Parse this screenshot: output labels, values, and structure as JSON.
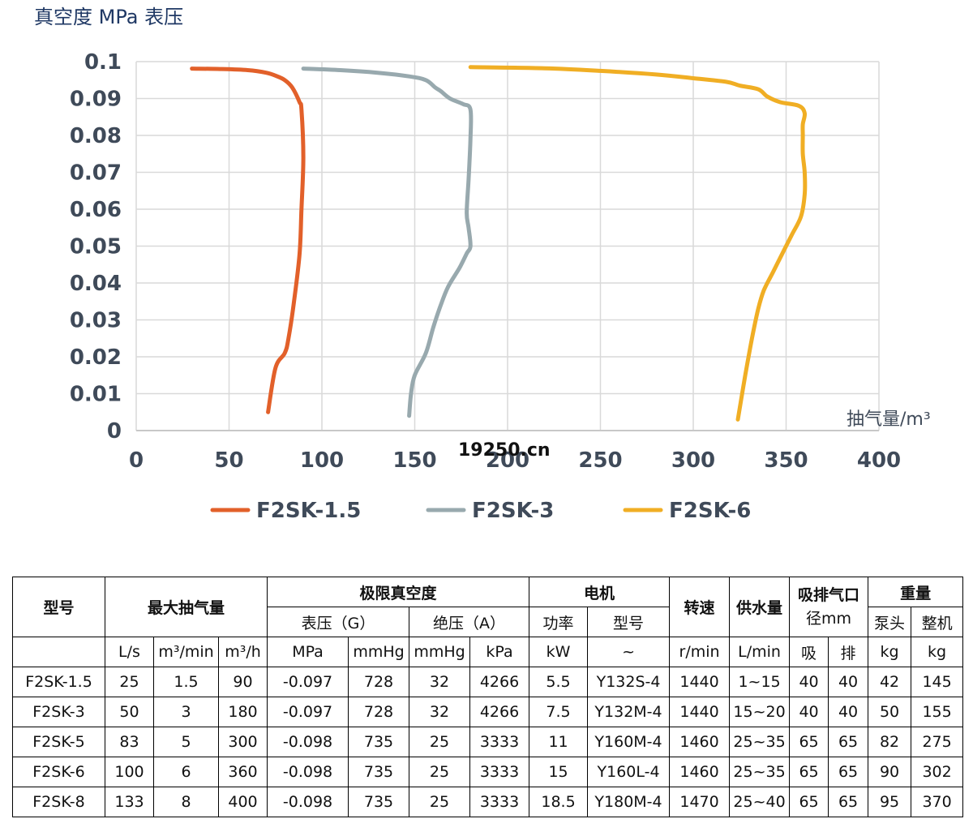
{
  "chart_data": {
    "type": "line",
    "title": "",
    "ylabel": "真空度 MPa 表压",
    "xlabel": "抽气量/m³",
    "xlim": [
      0,
      400
    ],
    "ylim": [
      0,
      0.1
    ],
    "x_ticks": [
      "0",
      "50",
      "100",
      "150",
      "200",
      "250",
      "300",
      "350",
      "400"
    ],
    "y_ticks": [
      "0",
      "0.01",
      "0.02",
      "0.03",
      "0.04",
      "0.05",
      "0.06",
      "0.07",
      "0.08",
      "0.09",
      "0.1"
    ],
    "grid": true,
    "legend_position": "bottom",
    "series": [
      {
        "name": "F2SK-1.5",
        "color": "#e2602a",
        "points": [
          [
            71,
            0.005
          ],
          [
            75,
            0.017
          ],
          [
            80,
            0.021
          ],
          [
            82,
            0.025
          ],
          [
            85,
            0.035
          ],
          [
            88,
            0.048
          ],
          [
            89,
            0.06
          ],
          [
            90,
            0.074
          ],
          [
            89,
            0.087
          ],
          [
            88,
            0.089
          ],
          [
            84,
            0.093
          ],
          [
            80,
            0.095
          ],
          [
            76,
            0.096
          ],
          [
            70,
            0.097
          ],
          [
            60,
            0.0977
          ],
          [
            45,
            0.098
          ],
          [
            30,
            0.0981
          ]
        ]
      },
      {
        "name": "F2SK-3",
        "color": "#98a9ae",
        "points": [
          [
            147,
            0.004
          ],
          [
            148,
            0.01
          ],
          [
            150,
            0.015
          ],
          [
            156,
            0.021
          ],
          [
            160,
            0.028
          ],
          [
            164,
            0.034
          ],
          [
            168,
            0.039
          ],
          [
            174,
            0.044
          ],
          [
            178,
            0.048
          ],
          [
            180,
            0.05
          ],
          [
            179,
            0.055
          ],
          [
            178,
            0.059
          ],
          [
            179,
            0.068
          ],
          [
            180,
            0.079
          ],
          [
            180,
            0.087
          ],
          [
            176,
            0.0885
          ],
          [
            169,
            0.09
          ],
          [
            164,
            0.092
          ],
          [
            161,
            0.093
          ],
          [
            156,
            0.095
          ],
          [
            147,
            0.096
          ],
          [
            130,
            0.097
          ],
          [
            110,
            0.0977
          ],
          [
            90,
            0.0981
          ]
        ]
      },
      {
        "name": "F2SK-6",
        "color": "#f0ae24",
        "points": [
          [
            324,
            0.003
          ],
          [
            328,
            0.015
          ],
          [
            332,
            0.026
          ],
          [
            335,
            0.033
          ],
          [
            338,
            0.038
          ],
          [
            343,
            0.043
          ],
          [
            348,
            0.048
          ],
          [
            353,
            0.053
          ],
          [
            358,
            0.058
          ],
          [
            360,
            0.064
          ],
          [
            360,
            0.07
          ],
          [
            359,
            0.075
          ],
          [
            359,
            0.08
          ],
          [
            359,
            0.083
          ],
          [
            360,
            0.086
          ],
          [
            357,
            0.088
          ],
          [
            347,
            0.089
          ],
          [
            340,
            0.0905
          ],
          [
            335,
            0.0925
          ],
          [
            325,
            0.0935
          ],
          [
            318,
            0.0945
          ],
          [
            300,
            0.0955
          ],
          [
            280,
            0.0965
          ],
          [
            250,
            0.0975
          ],
          [
            220,
            0.0982
          ],
          [
            180,
            0.0985
          ]
        ]
      }
    ]
  },
  "watermark": "19250.cn",
  "table": {
    "h1": {
      "model": "型号",
      "max_flow": "最大抽气量",
      "ultimate_vacuum": "极限真空度",
      "motor": "电机",
      "speed": "转速",
      "water": "供水量",
      "port_l1": "吸排气口",
      "port_l2": "径mm",
      "weight": "重量"
    },
    "h2": {
      "gauge": "表压（G）",
      "absolute": "绝压（A）",
      "power": "功率",
      "motor_model": "型号",
      "pump_head": "泵头",
      "whole": "整机"
    },
    "units": [
      "L/s",
      "m³/min",
      "m³/h",
      "MPa",
      "mmHg",
      "mmHg",
      "kPa",
      "kW",
      "~",
      "r/min",
      "L/min",
      "吸",
      "排",
      "kg",
      "kg"
    ],
    "rows": [
      [
        "F2SK-1.5",
        "25",
        "1.5",
        "90",
        "-0.097",
        "728",
        "32",
        "4266",
        "5.5",
        "Y132S-4",
        "1440",
        "1~15",
        "40",
        "40",
        "42",
        "145"
      ],
      [
        "F2SK-3",
        "50",
        "3",
        "180",
        "-0.097",
        "728",
        "32",
        "4266",
        "7.5",
        "Y132M-4",
        "1440",
        "15~20",
        "40",
        "40",
        "50",
        "155"
      ],
      [
        "F2SK-5",
        "83",
        "5",
        "300",
        "-0.098",
        "735",
        "25",
        "3333",
        "11",
        "Y160M-4",
        "1460",
        "25~35",
        "65",
        "65",
        "82",
        "275"
      ],
      [
        "F2SK-6",
        "100",
        "6",
        "360",
        "-0.098",
        "735",
        "25",
        "3333",
        "15",
        "Y160L-4",
        "1460",
        "25~35",
        "65",
        "65",
        "90",
        "302"
      ],
      [
        "F2SK-8",
        "133",
        "8",
        "400",
        "-0.098",
        "735",
        "25",
        "3333",
        "18.5",
        "Y180M-4",
        "1470",
        "25~40",
        "65",
        "65",
        "95",
        "370"
      ]
    ]
  }
}
